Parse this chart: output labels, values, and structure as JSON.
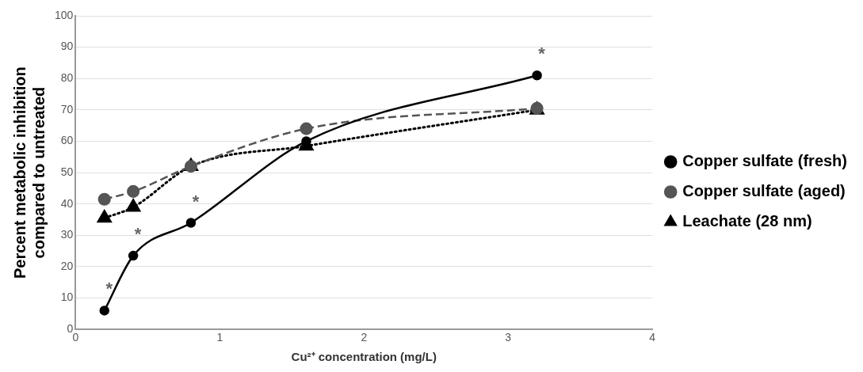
{
  "chart_data": {
    "type": "line",
    "xlabel": "Cu²⁺ concentration (mg/L)",
    "ylabel": "Percent metabolic inhibition compared to untreated",
    "xlim": [
      0,
      4
    ],
    "xticks": [
      0,
      1,
      2,
      3,
      4
    ],
    "ylim": [
      0,
      100
    ],
    "yticks": [
      0,
      10,
      20,
      30,
      40,
      50,
      60,
      70,
      80,
      90,
      100
    ],
    "grid": "y",
    "legend": "right",
    "series": [
      {
        "name": "Copper sulfate (fresh)",
        "color": "#000000",
        "marker": "circle",
        "line_style": "solid",
        "x": [
          0.2,
          0.4,
          0.8,
          1.6,
          3.2
        ],
        "values": [
          6,
          23.5,
          34,
          60,
          81
        ]
      },
      {
        "name": "Copper sulfate (aged)",
        "color": "#555555",
        "marker": "circle",
        "line_style": "dashed",
        "x": [
          0.2,
          0.4,
          0.8,
          1.6,
          3.2
        ],
        "values": [
          41.5,
          44,
          52,
          64,
          70.5
        ]
      },
      {
        "name": "Leachate (28 nm)",
        "color": "#000000",
        "marker": "triangle",
        "line_style": "dotted",
        "x": [
          0.2,
          0.4,
          0.8,
          1.6,
          3.2
        ],
        "values": [
          35.5,
          39,
          52,
          58.5,
          70
        ]
      }
    ],
    "annotations": [
      {
        "text": "*",
        "x": 0.2,
        "y": 6
      },
      {
        "text": "*",
        "x": 0.4,
        "y": 23.5
      },
      {
        "text": "*",
        "x": 0.8,
        "y": 34
      },
      {
        "text": "*",
        "x": 3.2,
        "y": 81
      }
    ]
  }
}
